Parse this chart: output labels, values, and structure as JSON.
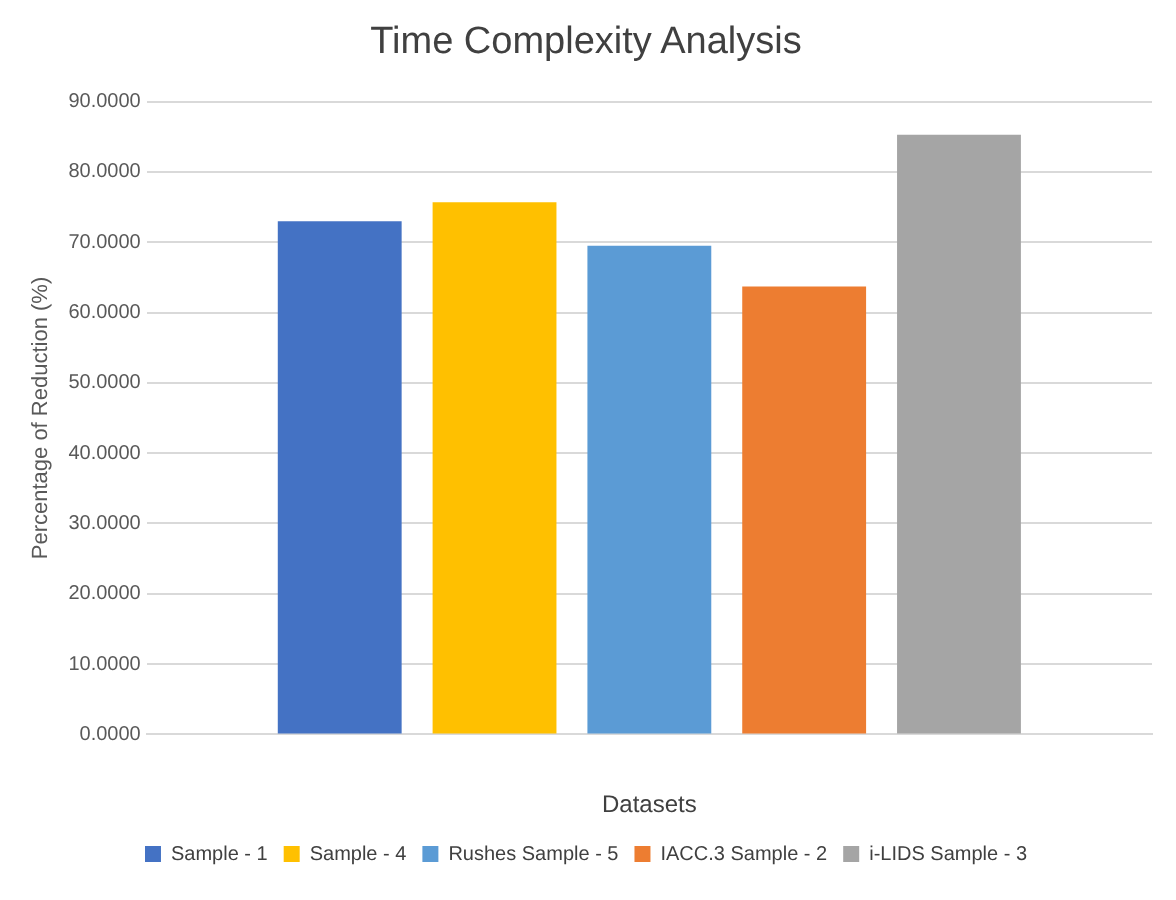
{
  "chart_data": {
    "type": "bar",
    "title": "Time Complexity Analysis",
    "xlabel": "Datasets",
    "ylabel": "Percentage of Reduction (%)",
    "categories": [
      null
    ],
    "series": [
      {
        "name": "Sample - 1",
        "color": "#4472c4",
        "values": [
          73.0
        ]
      },
      {
        "name": "Sample - 4",
        "color": "#ffc000",
        "values": [
          75.7
        ]
      },
      {
        "name": "Rushes Sample - 5",
        "color": "#5b9bd5",
        "values": [
          69.5
        ]
      },
      {
        "name": "IACC.3 Sample - 2",
        "color": "#ed7d31",
        "values": [
          63.7
        ]
      },
      {
        "name": "i-LIDS Sample - 3",
        "color": "#a5a5a5",
        "values": [
          85.3
        ]
      }
    ],
    "ylim": [
      0,
      90
    ],
    "yticks": [
      {
        "value": 0,
        "label": "0.0000"
      },
      {
        "value": 10,
        "label": "10.0000"
      },
      {
        "value": 20,
        "label": "20.0000"
      },
      {
        "value": 30,
        "label": "30.0000"
      },
      {
        "value": 40,
        "label": "40.0000"
      },
      {
        "value": 50,
        "label": "50.0000"
      },
      {
        "value": 60,
        "label": "60.0000"
      },
      {
        "value": 70,
        "label": "70.0000"
      },
      {
        "value": 80,
        "label": "80.0000"
      },
      {
        "value": 90,
        "label": "90.0000"
      }
    ],
    "grid": "y",
    "legend": "bottom"
  }
}
